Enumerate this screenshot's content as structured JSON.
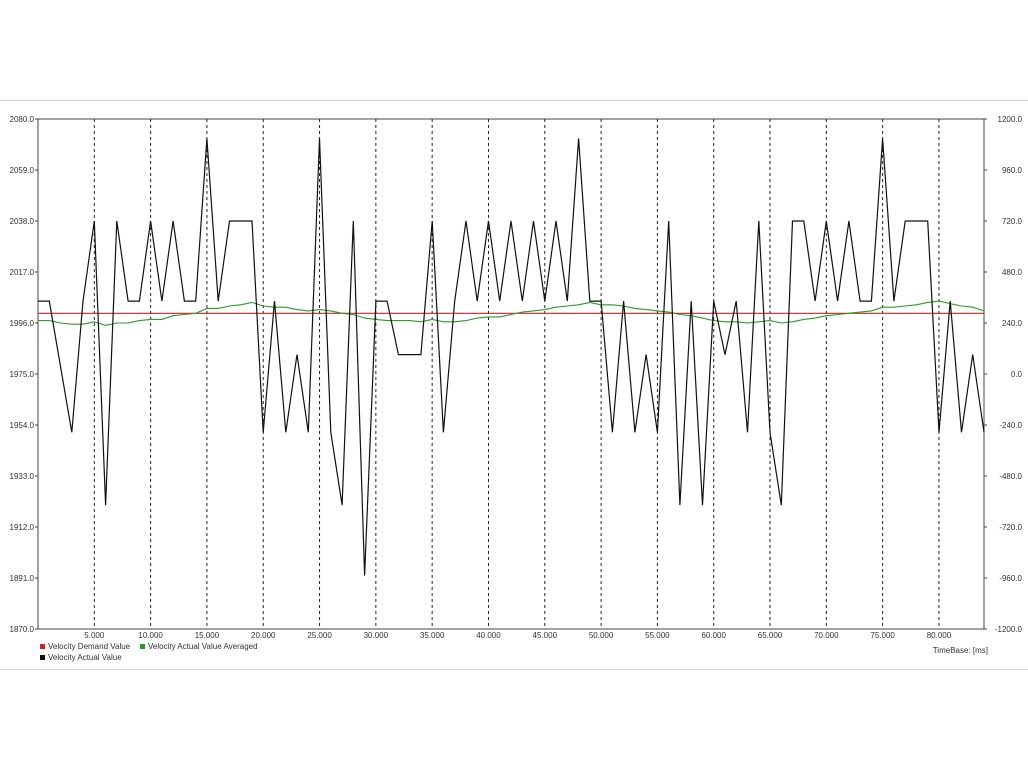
{
  "chart_data": {
    "type": "line",
    "xlabel": "TimeBase: [ms]",
    "xlim": [
      0,
      84
    ],
    "x_ticks": [
      "5.000",
      "10.000",
      "15.000",
      "20.000",
      "25.000",
      "30.000",
      "35.000",
      "40.000",
      "45.000",
      "50.000",
      "55.000",
      "60.000",
      "65.000",
      "70.000",
      "75.000",
      "80.000"
    ],
    "x_tick_values": [
      5,
      10,
      15,
      20,
      25,
      30,
      35,
      40,
      45,
      50,
      55,
      60,
      65,
      70,
      75,
      80
    ],
    "ylim_left": [
      1870.0,
      2080.0
    ],
    "y_ticks_left": [
      "2080.0",
      "2059.0",
      "2038.0",
      "2017.0",
      "1996.0",
      "1975.0",
      "1954.0",
      "1933.0",
      "1912.0",
      "1891.0",
      "1870.0"
    ],
    "ylim_right": [
      -1200.0,
      1200.0
    ],
    "y_ticks_right": [
      "1200.0",
      "960.0",
      "720.0",
      "480.0",
      "240.0",
      "0.0",
      "-240.0",
      "-480.0",
      "-720.0",
      "-960.0",
      "-1200.0"
    ],
    "grid": "vertical dashed at x ticks",
    "legend": "bottom-left",
    "series": [
      {
        "name": "Velocity Demand Value",
        "color": "#cc2222",
        "x": [
          0,
          84
        ],
        "y": [
          2000,
          2000
        ]
      },
      {
        "name": "Velocity Actual Value Averaged",
        "color": "#2a9a2a",
        "x": [
          0,
          1,
          2,
          3,
          4,
          5,
          6,
          7,
          8,
          9,
          10,
          11,
          12,
          13,
          14,
          15,
          16,
          17,
          18,
          19,
          20,
          21,
          22,
          23,
          24,
          25,
          26,
          27,
          28,
          29,
          30,
          31,
          32,
          33,
          34,
          35,
          36,
          37,
          38,
          39,
          40,
          41,
          42,
          43,
          44,
          45,
          46,
          47,
          48,
          49,
          50,
          51,
          52,
          53,
          54,
          55,
          56,
          57,
          58,
          59,
          60,
          61,
          62,
          63,
          64,
          65,
          66,
          67,
          68,
          69,
          70,
          71,
          72,
          73,
          74,
          75,
          76,
          77,
          78,
          79,
          80,
          81,
          82,
          83,
          84
        ],
        "y": [
          1997.0,
          1997.0,
          1996.0,
          1995.5,
          1995.5,
          1996.5,
          1995.0,
          1996.0,
          1996.0,
          1997.0,
          1997.5,
          1997.5,
          1999.0,
          1999.5,
          2000.0,
          2002.0,
          2002.0,
          2003.0,
          2003.5,
          2004.5,
          2003.0,
          2002.5,
          2002.5,
          2001.5,
          2001.0,
          2001.5,
          2001.0,
          2000.0,
          1999.5,
          1998.0,
          1997.5,
          1997.0,
          1997.0,
          1997.0,
          1996.5,
          1997.5,
          1996.5,
          1996.5,
          1997.0,
          1998.0,
          1998.5,
          1998.5,
          1999.5,
          2000.5,
          2001.0,
          2001.5,
          2002.5,
          2003.0,
          2003.5,
          2004.5,
          2003.5,
          2003.5,
          2003.0,
          2002.0,
          2001.5,
          2001.0,
          2000.5,
          1999.5,
          1999.0,
          1998.0,
          1997.0,
          1996.5,
          1996.5,
          1996.0,
          1996.5,
          1997.0,
          1996.0,
          1996.5,
          1997.5,
          1998.0,
          1999.0,
          1999.5,
          2000.0,
          2000.5,
          2001.0,
          2002.5,
          2002.5,
          2003.0,
          2003.5,
          2004.5,
          2005.0,
          2004.0,
          2003.0,
          2002.5,
          2001.0
        ]
      },
      {
        "name": "Velocity Actual Value",
        "color": "#111111",
        "x": [
          0,
          1,
          3,
          4,
          5,
          6,
          7,
          8,
          9,
          10,
          11,
          12,
          13,
          14,
          15,
          16,
          17,
          18,
          19,
          20,
          21,
          22,
          23,
          24,
          25,
          26,
          27,
          28,
          29,
          30,
          31,
          32,
          33,
          34,
          35,
          36,
          37,
          38,
          39,
          40,
          41,
          42,
          43,
          44,
          45,
          46,
          47,
          48,
          49,
          50,
          51,
          52,
          53,
          54,
          55,
          56,
          57,
          58,
          59,
          60,
          61,
          62,
          63,
          64,
          65,
          66,
          67,
          68,
          69,
          70,
          71,
          72,
          73,
          74,
          75,
          76,
          77,
          78,
          79,
          80,
          81,
          82,
          83,
          84
        ],
        "y": [
          2005,
          2005,
          1951,
          2005,
          2038,
          1921,
          2038,
          2005,
          2005,
          2038,
          2005,
          2038,
          2005,
          2005,
          2072,
          2005,
          2038,
          2038,
          2038,
          1951,
          2005,
          1951,
          1983,
          1951,
          2072,
          1951,
          1921,
          2038,
          1892,
          2005,
          2005,
          1983,
          1983,
          1983,
          2038,
          1951,
          2005,
          2038,
          2005,
          2038,
          2005,
          2038,
          2005,
          2038,
          2005,
          2038,
          2005,
          2072,
          2005,
          2005,
          1951,
          2005,
          1951,
          1983,
          1951,
          2038,
          1921,
          2005,
          1921,
          2005,
          1983,
          2005,
          1951,
          2038,
          1951,
          1921,
          2038,
          2038,
          2005,
          2038,
          2005,
          2038,
          2005,
          2005,
          2072,
          2005,
          2038,
          2038,
          2038,
          1951,
          2005,
          1951,
          1983,
          1951
        ]
      }
    ]
  }
}
